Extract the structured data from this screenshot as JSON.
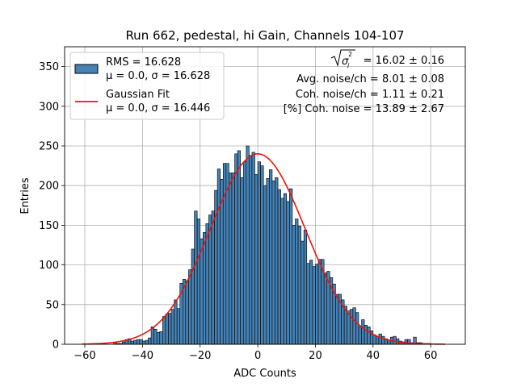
{
  "chart_data": {
    "type": "bar",
    "title": "Run 662, pedestal, hi Gain, Channels 104-107",
    "xlabel": "ADC Counts",
    "ylabel": "Entries",
    "xlim": [
      -67,
      72
    ],
    "ylim": [
      0,
      375
    ],
    "xticks": [
      -60,
      -40,
      -20,
      0,
      20,
      40,
      60
    ],
    "yticks": [
      0,
      50,
      100,
      150,
      200,
      250,
      300,
      350
    ],
    "grid": true,
    "legend_position": "top-left",
    "bin_width": 1,
    "bin_start": -61,
    "histogram": {
      "name": "RMS = 16.628",
      "subtitle": "μ = 0.0, σ = 16.628",
      "color": "#4682b4",
      "values": [
        0,
        0,
        0,
        0,
        0,
        0,
        0,
        0,
        0,
        0,
        0,
        2,
        1,
        1,
        3,
        6,
        7,
        4,
        5,
        6,
        6,
        4,
        5,
        8,
        22,
        19,
        15,
        16,
        35,
        38,
        39,
        44,
        56,
        45,
        77,
        82,
        80,
        94,
        120,
        168,
        158,
        133,
        141,
        152,
        163,
        168,
        194,
        221,
        208,
        228,
        228,
        216,
        216,
        240,
        244,
        210,
        230,
        250,
        238,
        242,
        214,
        230,
        225,
        200,
        209,
        220,
        206,
        210,
        195,
        184,
        190,
        180,
        196,
        150,
        158,
        149,
        130,
        144,
        102,
        106,
        98,
        101,
        107,
        107,
        90,
        92,
        84,
        76,
        63,
        63,
        56,
        48,
        42,
        44,
        46,
        40,
        22,
        31,
        24,
        22,
        17,
        12,
        10,
        13,
        10,
        7,
        5,
        9,
        10,
        7,
        4,
        3,
        6,
        6,
        2,
        9,
        2,
        2,
        1,
        1,
        1,
        0,
        0,
        0,
        0,
        0,
        0
      ]
    },
    "fit": {
      "name": "Gaussian Fit",
      "subtitle": "μ = 0.0, σ = 16.446",
      "color": "#e8160c",
      "mu": 0.0,
      "sigma": 16.446,
      "amplitude": 240
    },
    "annotations": {
      "sigma_line_value": "= 16.02 ± 0.16",
      "avg_noise": "Avg. noise/ch = 8.01 ± 0.08",
      "coh_noise": "Coh. noise/ch = 1.11 ± 0.21",
      "coh_pct": "[%] Coh. noise = 13.89 ± 2.67"
    }
  }
}
